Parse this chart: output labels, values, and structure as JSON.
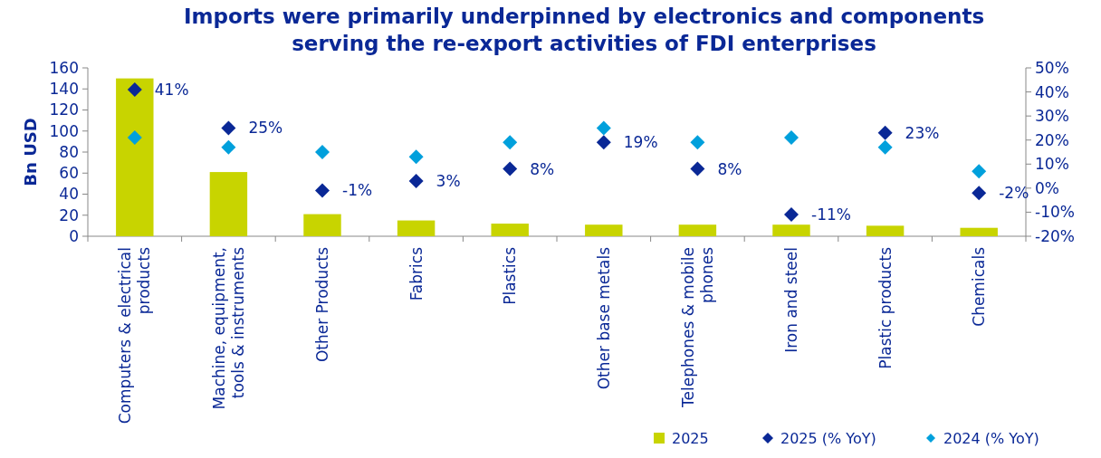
{
  "chart_data": {
    "type": "bar",
    "title": "Imports were primarily underpinned by electronics and components serving the re-export activities of FDI enterprises",
    "ylabel": "Bn USD",
    "categories": [
      "Computers & electrical products",
      "Machine, equipment, tools & instruments",
      "Other Products",
      "Fabrics",
      "Plastics",
      "Other base metals",
      "Telephones & mobile phones",
      "Iron and steel",
      "Plastic products",
      "Chemicals"
    ],
    "series": [
      {
        "name": "2025",
        "color": "#c8d400",
        "values": [
          150,
          61,
          21,
          15,
          12,
          11,
          11,
          11,
          10,
          8
        ]
      },
      {
        "name": "2025 (% YoY)",
        "type": "scatter",
        "axis": "y2",
        "marker": "diamond",
        "color": "#0a2896",
        "values": [
          41,
          25,
          -1,
          3,
          8,
          19,
          8,
          -11,
          23,
          -2
        ],
        "value_labels": [
          "41%",
          "25%",
          "-1%",
          "3%",
          "8%",
          "19%",
          "8%",
          "-11%",
          "23%",
          "-2%"
        ]
      },
      {
        "name": "2024 (% YoY)",
        "type": "scatter",
        "axis": "y2",
        "marker": "diamond",
        "color": "#00a0dc",
        "values": [
          21,
          17,
          15,
          13,
          19,
          25,
          19,
          21,
          17,
          7
        ]
      }
    ],
    "ylim": [
      0,
      160
    ],
    "yticks": [
      0,
      20,
      40,
      60,
      80,
      100,
      120,
      140,
      160
    ],
    "y2lim": [
      -20,
      50
    ],
    "y2ticks": [
      {
        "value": -20,
        "label": "-20%"
      },
      {
        "value": -10,
        "label": "-10%"
      },
      {
        "value": 0,
        "label": "0%"
      },
      {
        "value": 10,
        "label": "10%"
      },
      {
        "value": 20,
        "label": "20%"
      },
      {
        "value": 30,
        "label": "30%"
      },
      {
        "value": 40,
        "label": "40%"
      },
      {
        "value": 50,
        "label": "50%"
      }
    ],
    "grid": false,
    "legend": "bottom right"
  }
}
